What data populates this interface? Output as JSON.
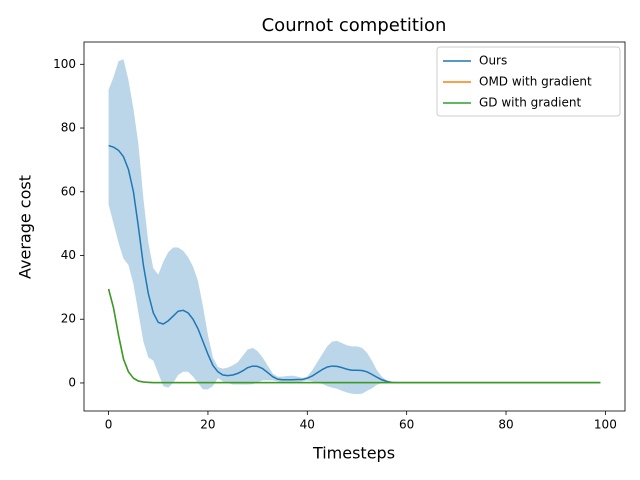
{
  "chart_data": {
    "type": "line",
    "title": "Cournot competition",
    "x_label": "Timesteps",
    "y_label": "Average cost",
    "x": [
      0,
      1,
      2,
      3,
      4,
      5,
      6,
      7,
      8,
      9,
      10,
      11,
      12,
      13,
      14,
      15,
      16,
      17,
      18,
      19,
      20,
      21,
      22,
      23,
      24,
      25,
      26,
      27,
      28,
      29,
      30,
      31,
      32,
      33,
      34,
      35,
      36,
      37,
      38,
      39,
      40,
      41,
      42,
      43,
      44,
      45,
      46,
      47,
      48,
      49,
      50,
      51,
      52,
      53,
      54,
      55,
      56,
      57,
      58,
      59,
      60,
      61,
      62,
      63,
      64,
      65,
      66,
      67,
      68,
      69,
      70,
      71,
      72,
      73,
      74,
      75,
      76,
      77,
      78,
      79,
      80,
      81,
      82,
      83,
      84,
      85,
      86,
      87,
      88,
      89,
      90,
      91,
      92,
      93,
      94,
      95,
      96,
      97,
      98,
      99
    ],
    "series": [
      {
        "name": "Ours",
        "color": "#1f77b4",
        "band_opacity": 0.3,
        "values": [
          74.5,
          74,
          73,
          71,
          67,
          60,
          49,
          37,
          28,
          22,
          19,
          18.5,
          19.5,
          21,
          22.5,
          22.8,
          22,
          20,
          17,
          13,
          9,
          5.5,
          3.5,
          2.5,
          2.3,
          2.5,
          3,
          3.8,
          4.8,
          5.3,
          5.2,
          4.5,
          3.3,
          2,
          1.2,
          1,
          1,
          1,
          1.1,
          1.1,
          1.5,
          2.2,
          3.2,
          4.2,
          5,
          5.3,
          5.2,
          4.8,
          4.3,
          4,
          4,
          3.9,
          3.5,
          2.7,
          1.8,
          1,
          0.5,
          0.2,
          0.1,
          0.1,
          0.1,
          0.1,
          0.1,
          0.1,
          0.1,
          0.1,
          0.1,
          0.1,
          0.1,
          0.1,
          0.1,
          0.1,
          0.1,
          0.1,
          0.1,
          0.1,
          0.1,
          0.1,
          0.1,
          0.1,
          0.1,
          0.1,
          0.1,
          0.1,
          0.1,
          0.1,
          0.1,
          0.1,
          0.1,
          0.1,
          0.1,
          0.1,
          0.1,
          0.1,
          0.1,
          0.1,
          0.1,
          0.1,
          0.1,
          0.1
        ],
        "upper": [
          92,
          96,
          101,
          101.6,
          95,
          86,
          75,
          58,
          44,
          36,
          34,
          38,
          41,
          42.5,
          42.5,
          41.5,
          39.5,
          36.5,
          32,
          24,
          15,
          8,
          5,
          4.5,
          4.8,
          5.5,
          6.5,
          8.5,
          10.5,
          11,
          10,
          8,
          5.5,
          3,
          2,
          2,
          2.2,
          2.3,
          2,
          1.6,
          2,
          4,
          6.5,
          9,
          11.5,
          13,
          13.2,
          12.5,
          11.8,
          11.5,
          11.5,
          11,
          9.5,
          7,
          4,
          2,
          0.8,
          0.3,
          0.2,
          0.1,
          0.1,
          0.1,
          0.1,
          0.1,
          0.1,
          0.1,
          0.1,
          0.1,
          0.1,
          0.1,
          0.1,
          0.1,
          0.1,
          0.1,
          0.1,
          0.1,
          0.1,
          0.1,
          0.1,
          0.1,
          0.1,
          0.1,
          0.1,
          0.1,
          0.1,
          0.1,
          0.1,
          0.1,
          0.1,
          0.1,
          0.1,
          0.1,
          0.1,
          0.1,
          0.1,
          0.1,
          0.1,
          0.1,
          0.1,
          0.1
        ],
        "lower": [
          56,
          50,
          44,
          39,
          37,
          31,
          22,
          13,
          8,
          7,
          3,
          -1,
          -1.5,
          0,
          2.5,
          3.5,
          3.5,
          2,
          0,
          -2,
          -2,
          -1,
          1.5,
          0.5,
          0,
          -0.5,
          -0.5,
          -0.5,
          -0.5,
          -0.4,
          0.2,
          0.8,
          0.8,
          0.8,
          0.5,
          0,
          0,
          0,
          0.2,
          0.5,
          0.8,
          0.5,
          0,
          -0.3,
          -1,
          -1.5,
          -1.8,
          -2.5,
          -3,
          -3.4,
          -3.5,
          -3.4,
          -2.5,
          -1.7,
          -0.6,
          0,
          0.1,
          0,
          0,
          0,
          0,
          0,
          0,
          0,
          0,
          0,
          0,
          0,
          0,
          0,
          0,
          0,
          0,
          0,
          0,
          0,
          0,
          0,
          0,
          0,
          0,
          0,
          0,
          0,
          0,
          0,
          0,
          0,
          0,
          0,
          0,
          0,
          0,
          0,
          0,
          0,
          0,
          0,
          0,
          0
        ]
      },
      {
        "name": "OMD with gradient",
        "color": "#ff7f0e",
        "values": [
          29.5,
          23.5,
          15,
          7.5,
          3.5,
          1.5,
          0.6,
          0.3,
          0.2,
          0.1,
          0.1,
          0.1,
          0.1,
          0.1,
          0.1,
          0.1,
          0.1,
          0.1,
          0.1,
          0.1,
          0.1,
          0.1,
          0.1,
          0.1,
          0.1,
          0.1,
          0.1,
          0.1,
          0.1,
          0.1,
          0.1,
          0.1,
          0.1,
          0.1,
          0.1,
          0.1,
          0.1,
          0.1,
          0.1,
          0.1,
          0.1,
          0.1,
          0.1,
          0.1,
          0.1,
          0.1,
          0.1,
          0.1,
          0.1,
          0.1,
          0.1,
          0.1,
          0.1,
          0.1,
          0.1,
          0.1,
          0.1,
          0.1,
          0.1,
          0.1,
          0.1,
          0.1,
          0.1,
          0.1,
          0.1,
          0.1,
          0.1,
          0.1,
          0.1,
          0.1,
          0.1,
          0.1,
          0.1,
          0.1,
          0.1,
          0.1,
          0.1,
          0.1,
          0.1,
          0.1,
          0.1,
          0.1,
          0.1,
          0.1,
          0.1,
          0.1,
          0.1,
          0.1,
          0.1,
          0.1,
          0.1,
          0.1,
          0.1,
          0.1,
          0.1,
          0.1,
          0.1,
          0.1,
          0.1,
          0.1
        ]
      },
      {
        "name": "GD with gradient",
        "color": "#2ca02c",
        "values": [
          29.5,
          23.5,
          15,
          7.5,
          3.5,
          1.5,
          0.6,
          0.3,
          0.2,
          0.1,
          0.1,
          0.1,
          0.1,
          0.1,
          0.1,
          0.1,
          0.1,
          0.1,
          0.1,
          0.1,
          0.1,
          0.1,
          0.1,
          0.1,
          0.1,
          0.1,
          0.1,
          0.1,
          0.1,
          0.1,
          0.1,
          0.1,
          0.1,
          0.1,
          0.1,
          0.1,
          0.1,
          0.1,
          0.1,
          0.1,
          0.1,
          0.1,
          0.1,
          0.1,
          0.1,
          0.1,
          0.1,
          0.1,
          0.1,
          0.1,
          0.1,
          0.1,
          0.1,
          0.1,
          0.1,
          0.1,
          0.1,
          0.1,
          0.1,
          0.1,
          0.1,
          0.1,
          0.1,
          0.1,
          0.1,
          0.1,
          0.1,
          0.1,
          0.1,
          0.1,
          0.1,
          0.1,
          0.1,
          0.1,
          0.1,
          0.1,
          0.1,
          0.1,
          0.1,
          0.1,
          0.1,
          0.1,
          0.1,
          0.1,
          0.1,
          0.1,
          0.1,
          0.1,
          0.1,
          0.1,
          0.1,
          0.1,
          0.1,
          0.1,
          0.1,
          0.1,
          0.1,
          0.1,
          0.1,
          0.1
        ]
      }
    ],
    "xlim": [
      -4.95,
      103.95
    ],
    "xticks": [
      0,
      20,
      40,
      60,
      80,
      100
    ],
    "ylim": [
      -8.8,
      107
    ],
    "yticks": [
      0,
      20,
      40,
      60,
      80,
      100
    ],
    "legend": "upper right"
  }
}
